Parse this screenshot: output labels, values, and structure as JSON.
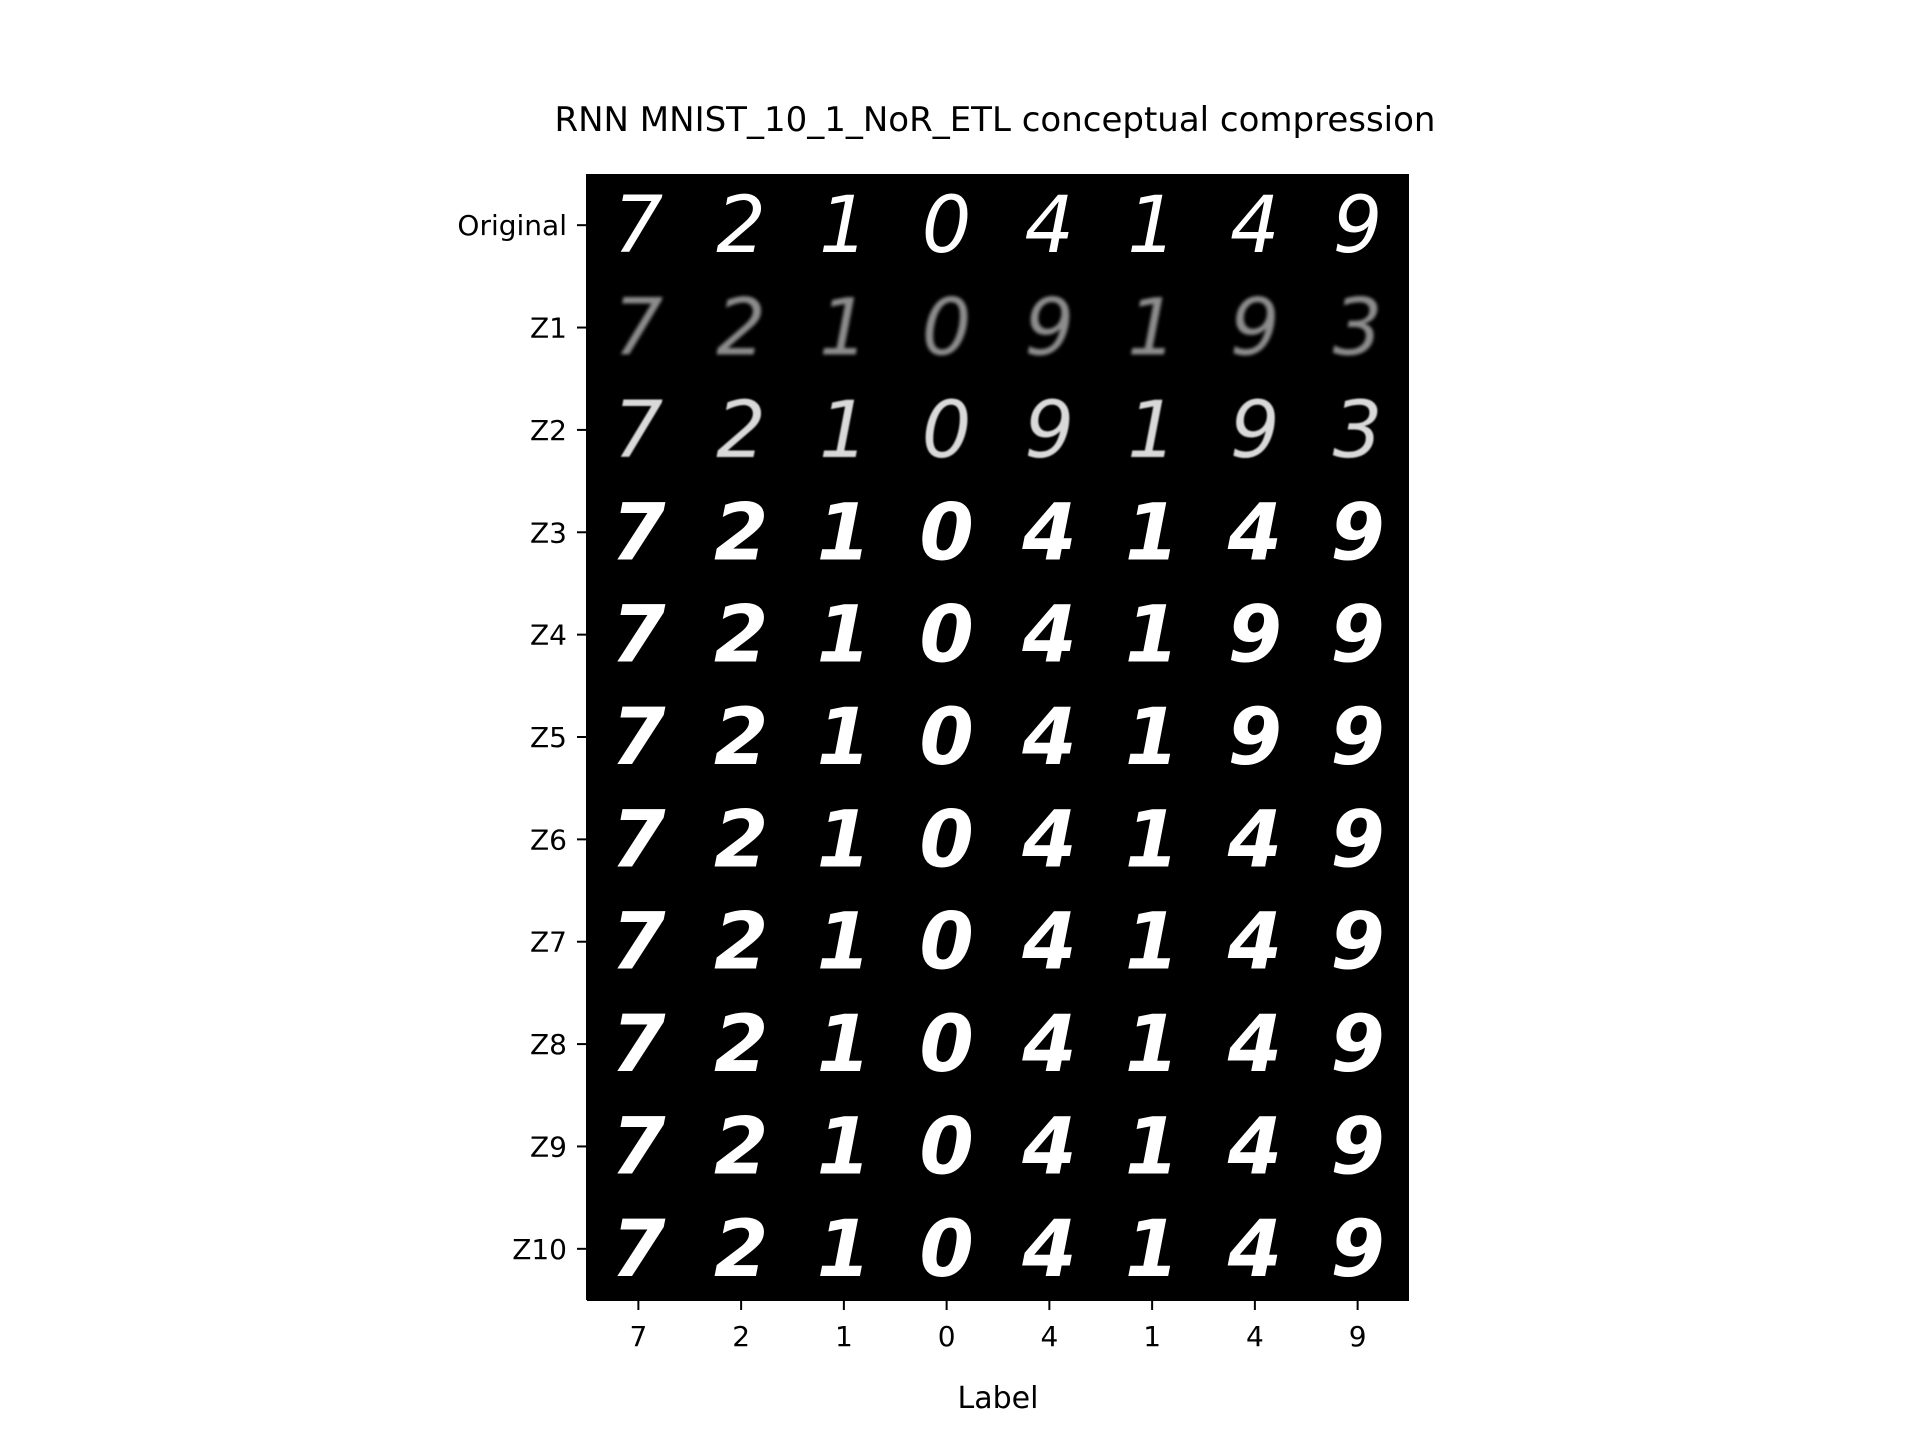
{
  "chart_data": {
    "type": "image_grid",
    "title": "RNN MNIST_10_1_NoR_ETL conceptual compression",
    "xlabel": "Label",
    "ylabel": "",
    "x_tick_labels": [
      "7",
      "2",
      "1",
      "0",
      "4",
      "1",
      "4",
      "9"
    ],
    "y_tick_labels": [
      "Original",
      "Z1",
      "Z2",
      "Z3",
      "Z4",
      "Z5",
      "Z6",
      "Z7",
      "Z8",
      "Z9",
      "Z10"
    ],
    "colormap": "grayscale",
    "cell_digits": [
      [
        "7",
        "2",
        "1",
        "0",
        "4",
        "1",
        "4",
        "9"
      ],
      [
        "7",
        "2",
        "1",
        "0",
        "9",
        "1",
        "9",
        "3"
      ],
      [
        "7",
        "2",
        "1",
        "0",
        "9",
        "1",
        "9",
        "3"
      ],
      [
        "7",
        "2",
        "1",
        "0",
        "4",
        "1",
        "4",
        "9"
      ],
      [
        "7",
        "2",
        "1",
        "0",
        "4",
        "1",
        "9",
        "9"
      ],
      [
        "7",
        "2",
        "1",
        "0",
        "4",
        "1",
        "9",
        "9"
      ],
      [
        "7",
        "2",
        "1",
        "0",
        "4",
        "1",
        "4",
        "9"
      ],
      [
        "7",
        "2",
        "1",
        "0",
        "4",
        "1",
        "4",
        "9"
      ],
      [
        "7",
        "2",
        "1",
        "0",
        "4",
        "1",
        "4",
        "9"
      ],
      [
        "7",
        "2",
        "1",
        "0",
        "4",
        "1",
        "4",
        "9"
      ],
      [
        "7",
        "2",
        "1",
        "0",
        "4",
        "1",
        "4",
        "9"
      ]
    ],
    "row_brightness": [
      1.0,
      0.55,
      0.85,
      1.0,
      1.0,
      1.0,
      1.0,
      1.0,
      1.0,
      1.0,
      1.0
    ],
    "row_blur": [
      0,
      1.6,
      0.7,
      0.2,
      0,
      0,
      0,
      0,
      0,
      0,
      0
    ],
    "colors": {
      "background": "#000000",
      "stroke": "#ffffff",
      "axis": "#000000"
    }
  }
}
